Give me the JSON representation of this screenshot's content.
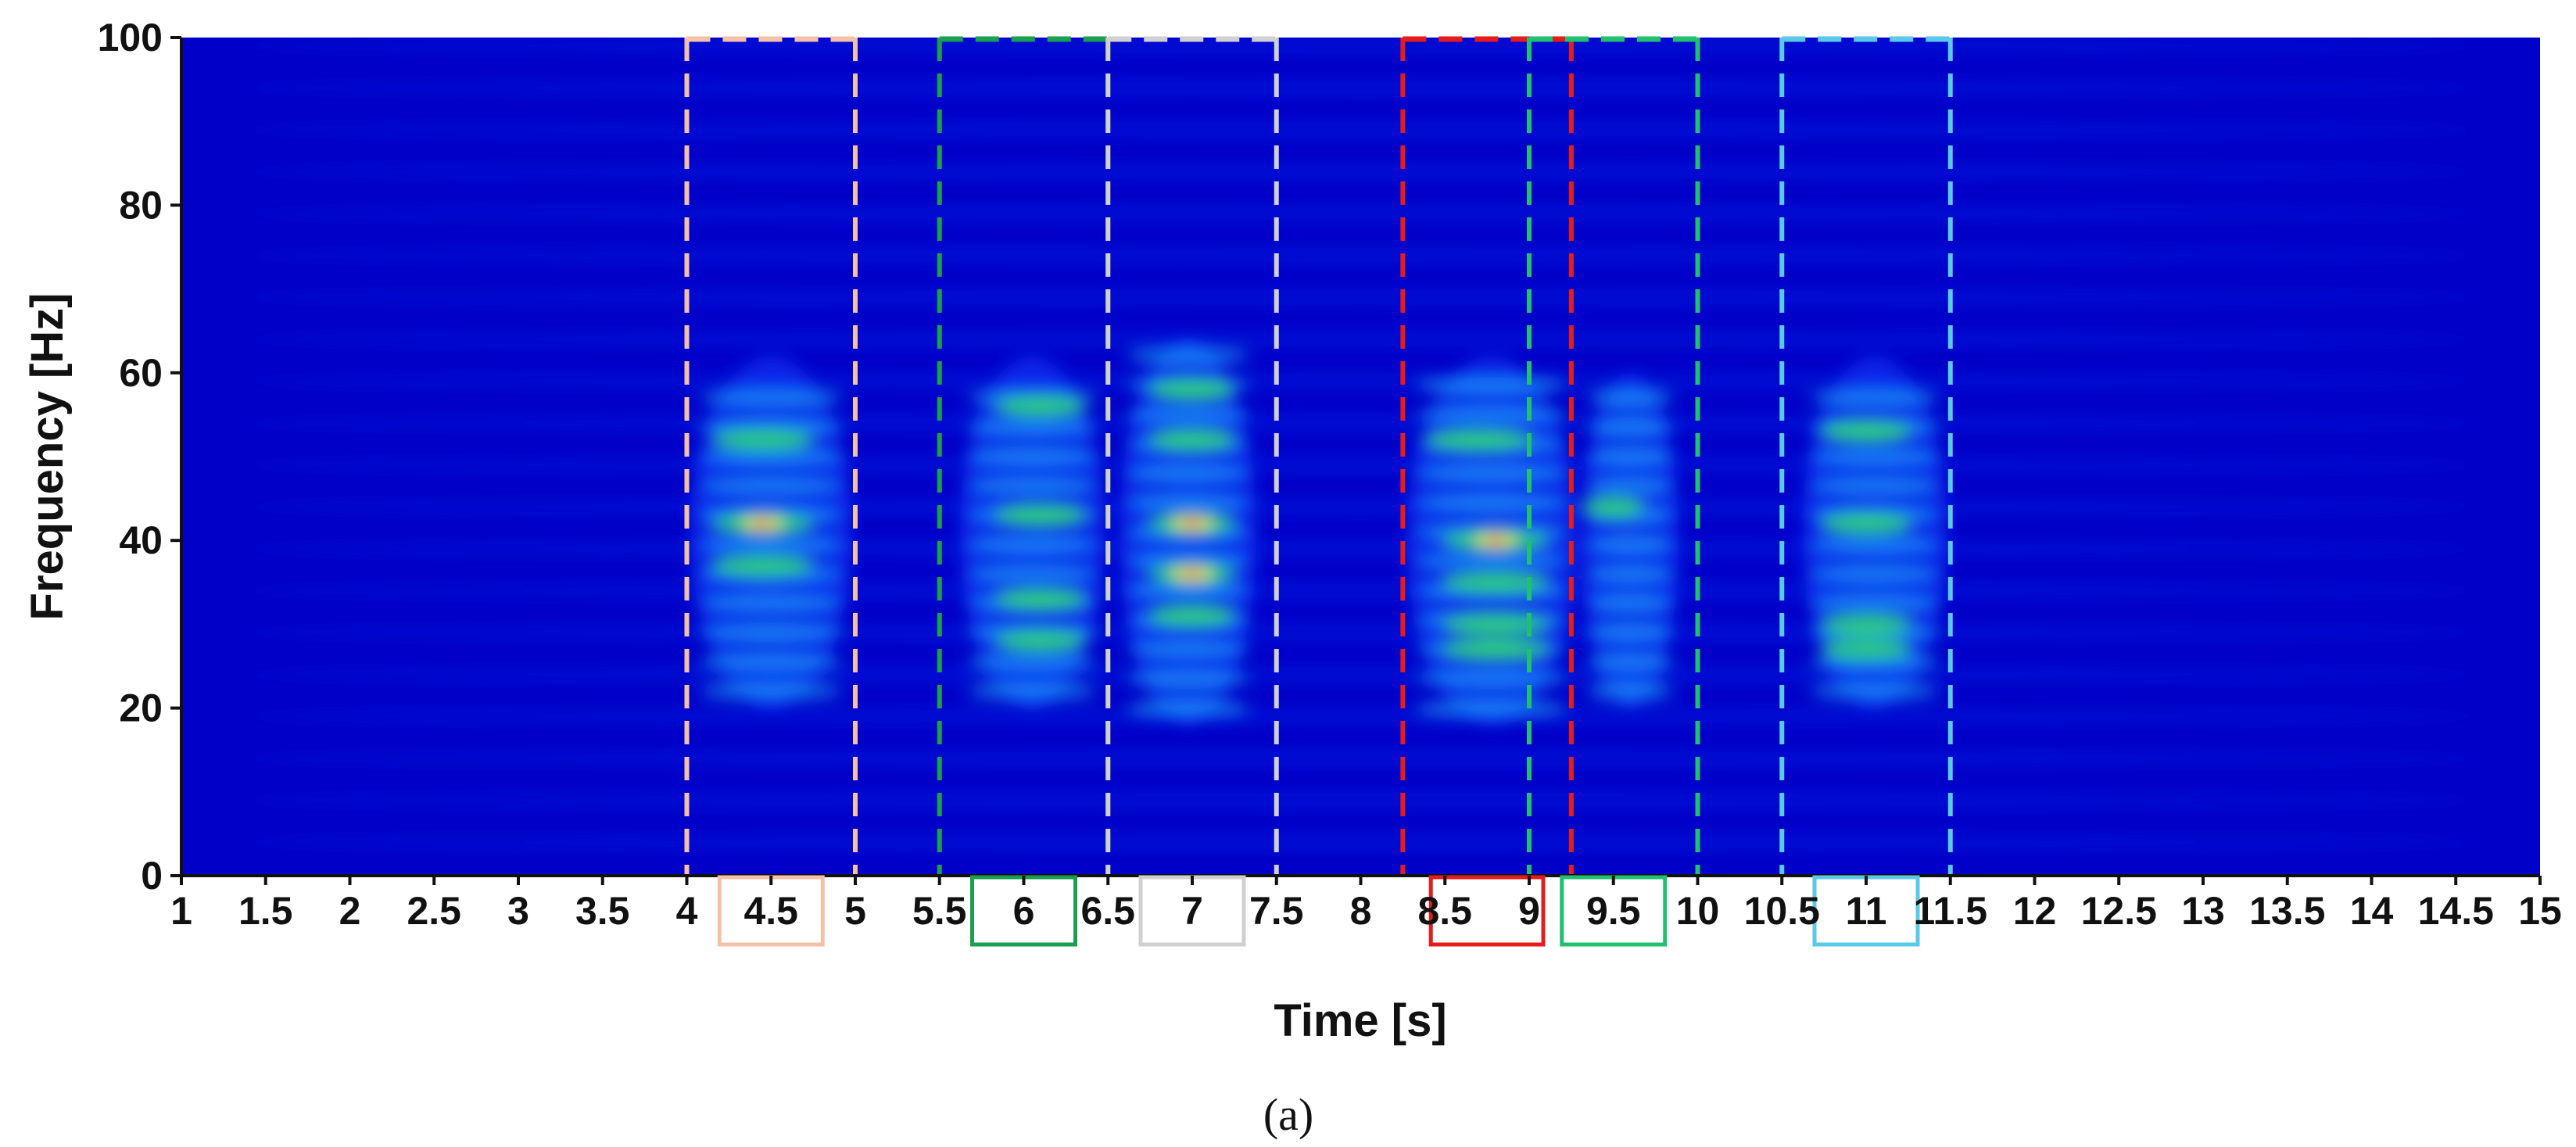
{
  "chart_data": {
    "type": "heatmap",
    "xlabel": "Time [s]",
    "ylabel": "Frequency [Hz]",
    "xlim": [
      1,
      15
    ],
    "ylim": [
      0,
      100
    ],
    "x_ticks": [
      1,
      1.5,
      2,
      2.5,
      3,
      3.5,
      4,
      4.5,
      5,
      5.5,
      6,
      6.5,
      7,
      7.5,
      8,
      8.5,
      9,
      9.5,
      10,
      10.5,
      11,
      11.5,
      12,
      12.5,
      13,
      13.5,
      14,
      14.5,
      15
    ],
    "y_ticks": [
      0,
      20,
      40,
      60,
      80,
      100
    ],
    "colormap": [
      "#0000c8",
      "#1040ff",
      "#20c8ff",
      "#30ffd0",
      "#30e060",
      "#ffff00",
      "#ff0000"
    ],
    "segments": [
      {
        "start": 4,
        "end": 5,
        "label": "4.5",
        "color": "#f4c0a8"
      },
      {
        "start": 5.5,
        "end": 6.5,
        "label": "6",
        "color": "#1a9e50"
      },
      {
        "start": 6.5,
        "end": 7.5,
        "label": "7",
        "color": "#d0d0d0"
      },
      {
        "start": 8.25,
        "end": 9.25,
        "label": "8.5",
        "color": "#e51c1c"
      },
      {
        "start": 9,
        "end": 10,
        "label": "9.5",
        "color": "#20c070"
      },
      {
        "start": 10.5,
        "end": 11.5,
        "label": "11",
        "color": "#5ac8e8"
      }
    ],
    "highlighted_tick_labels": [
      "4.5",
      "6",
      "7",
      "9.5",
      "11"
    ],
    "boxed_label_pair": [
      "8.5",
      "9"
    ]
  },
  "caption": "(a)"
}
